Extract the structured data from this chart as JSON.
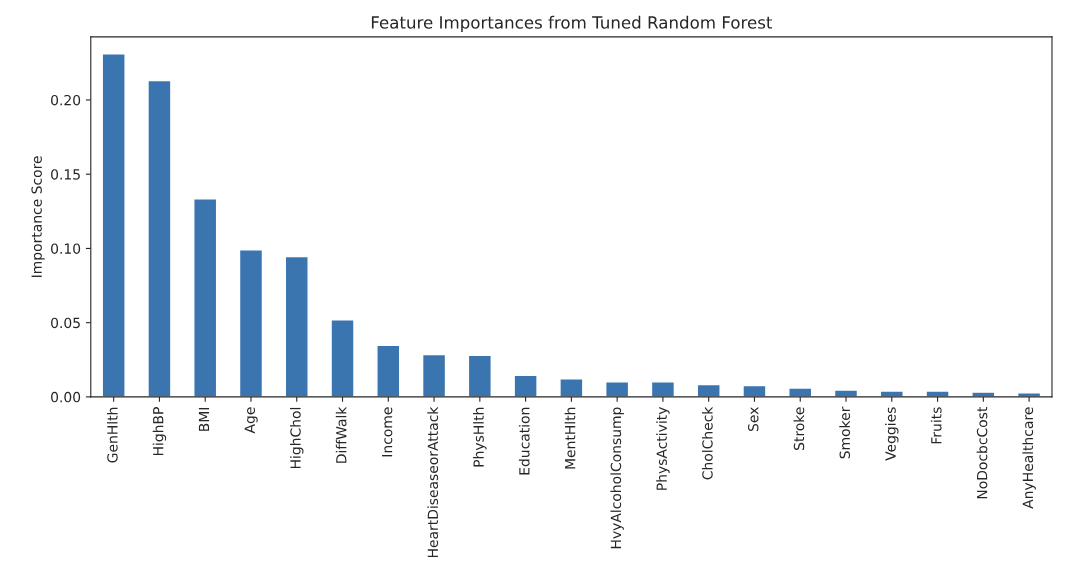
{
  "chart_data": {
    "type": "bar",
    "title": "Feature Importances from Tuned Random Forest",
    "ylabel": "Importance Score",
    "categories": [
      "GenHlth",
      "HighBP",
      "BMI",
      "Age",
      "HighChol",
      "DiffWalk",
      "Income",
      "HeartDiseaseorAttack",
      "PhysHlth",
      "Education",
      "MentHlth",
      "HvyAlcoholConsump",
      "PhysActivity",
      "CholCheck",
      "Sex",
      "Stroke",
      "Smoker",
      "Veggies",
      "Fruits",
      "NoDocbcCost",
      "AnyHealthcare"
    ],
    "values": [
      0.231,
      0.213,
      0.1335,
      0.099,
      0.0946,
      0.052,
      0.0348,
      0.0286,
      0.028,
      0.0146,
      0.0122,
      0.0101,
      0.0101,
      0.0083,
      0.0076,
      0.006,
      0.0046,
      0.004,
      0.004,
      0.0032,
      0.0028
    ],
    "color": "#3a75b0",
    "ylim": [
      0,
      0.2425
    ],
    "yticks": [
      {
        "value": 0,
        "label": "0.00"
      },
      {
        "value": 0.05,
        "label": "0.05"
      },
      {
        "value": 0.1,
        "label": "0.10"
      },
      {
        "value": 0.15,
        "label": "0.15"
      },
      {
        "value": 0.2,
        "label": "0.20"
      }
    ],
    "grid": false,
    "legend": false
  }
}
